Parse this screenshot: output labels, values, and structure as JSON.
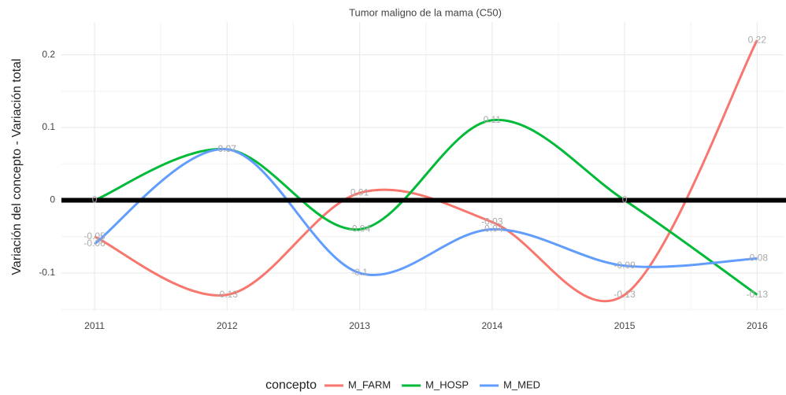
{
  "chart_data": {
    "type": "line",
    "title": "Tumor maligno de la mama (C50)",
    "ylabel": "Variación del concepto - Variación total",
    "legend_title": "concepto",
    "legend": "bottom",
    "x": [
      2011,
      2012,
      2013,
      2014,
      2015,
      2016
    ],
    "series": [
      {
        "name": "M_FARM",
        "color": "#F8766D",
        "values": [
          -0.05,
          -0.13,
          0.01,
          -0.03,
          -0.13,
          0.22
        ]
      },
      {
        "name": "M_HOSP",
        "color": "#00BA38",
        "values": [
          0,
          0.07,
          -0.04,
          0.11,
          0,
          -0.13
        ]
      },
      {
        "name": "M_MED",
        "color": "#619CFF",
        "values": [
          -0.06,
          0.07,
          -0.1,
          -0.04,
          -0.09,
          -0.08
        ]
      }
    ],
    "xlim": [
      2010.75,
      2016.2
    ],
    "xticks": [
      2011,
      2012,
      2013,
      2014,
      2015,
      2016
    ],
    "ylim": [
      -0.152,
      0.245
    ],
    "yticks": [
      -0.1,
      0,
      0.1,
      0.2
    ],
    "reference_line": 0,
    "grid": true,
    "smooth": true
  }
}
